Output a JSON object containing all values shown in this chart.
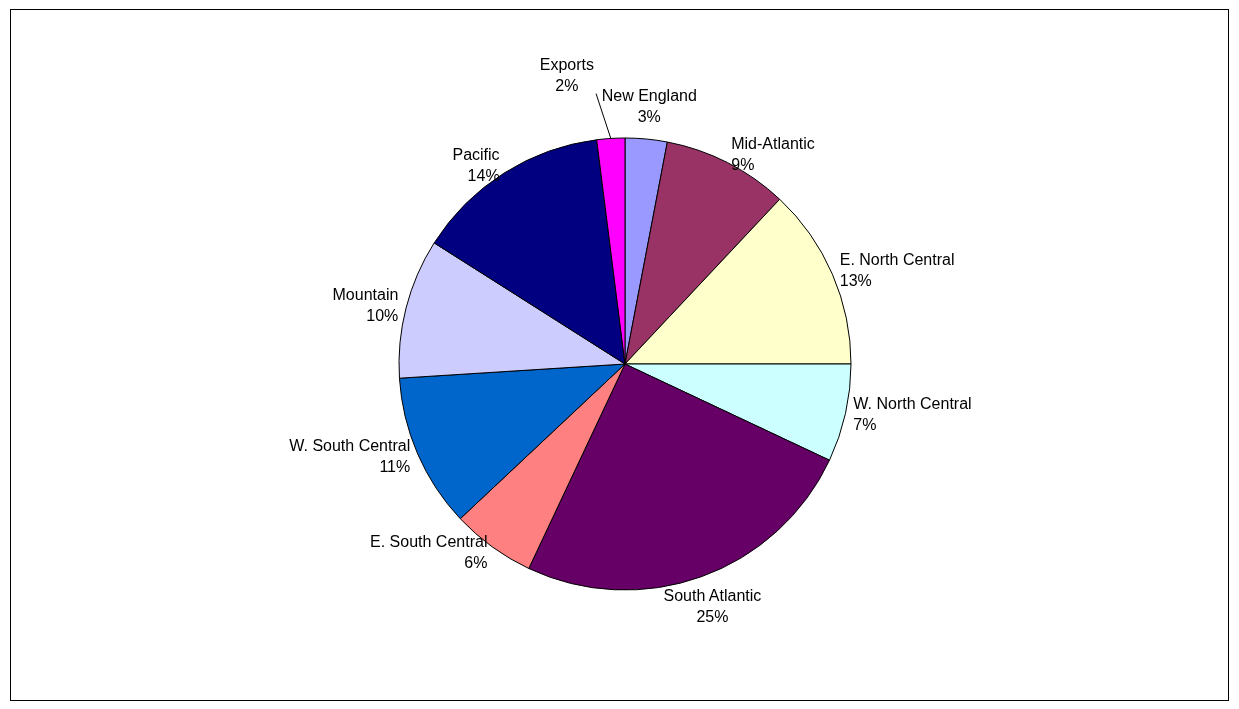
{
  "chart_data": {
    "type": "pie",
    "categories": [
      "New England",
      "Mid-Atlantic",
      "E. North Central",
      "W. North Central",
      "South Atlantic",
      "E. South Central",
      "W. South Central",
      "Mountain",
      "Pacific",
      "Exports"
    ],
    "values": [
      3,
      9,
      13,
      7,
      25,
      6,
      11,
      10,
      14,
      2
    ],
    "value_labels": [
      "3%",
      "9%",
      "13%",
      "7%",
      "25%",
      "6%",
      "11%",
      "10%",
      "14%",
      "2%"
    ],
    "colors": [
      "#9999ff",
      "#993366",
      "#ffffcc",
      "#ccffff",
      "#660066",
      "#ff8080",
      "#0066cc",
      "#ccccff",
      "#000080",
      "#ff00ff"
    ],
    "legend": false
  }
}
